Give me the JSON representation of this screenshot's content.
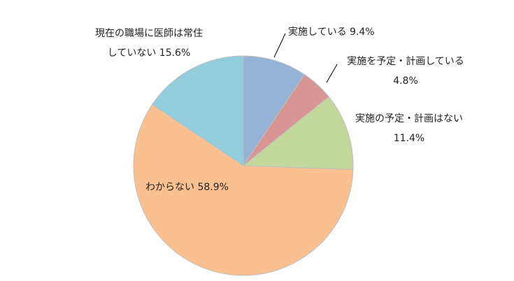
{
  "chart_data": {
    "type": "pie",
    "categories": [
      "実施している",
      "実施を予定・計画している",
      "実施の予定・計画はない",
      "わからない",
      "現在の職場に医師は常住していない"
    ],
    "values": [
      9.4,
      4.8,
      11.4,
      58.9,
      15.6
    ],
    "value_labels": [
      "9.4%",
      "4.8%",
      "11.4%",
      "58.9%",
      "15.6%"
    ],
    "colors": [
      "#95b3d7",
      "#d99594",
      "#c3d69b",
      "#fac090",
      "#92cddc"
    ]
  }
}
